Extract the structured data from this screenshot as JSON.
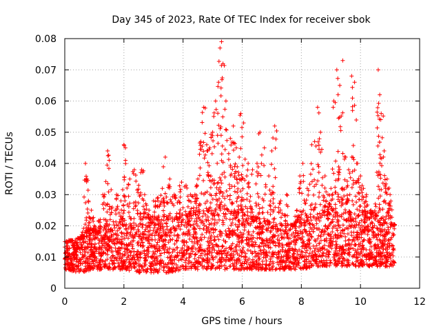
{
  "chart_data": {
    "type": "scatter",
    "title": "Day 345 of 2023, Rate Of TEC Index for receiver sbok",
    "xlabel": "GPS time / hours",
    "ylabel": "ROTI / TECUs",
    "xlim": [
      0,
      12
    ],
    "ylim": [
      0,
      0.08
    ],
    "x_ticks": [
      "0",
      "2",
      "4",
      "6",
      "8",
      "10",
      "12"
    ],
    "y_ticks": [
      "0",
      "0.01",
      "0.02",
      "0.03",
      "0.04",
      "0.05",
      "0.06",
      "0.07",
      "0.08"
    ],
    "grid": true,
    "legend": "none",
    "marker": "+",
    "color": "#ff0000",
    "series": [
      {
        "x": [
          0.05,
          0.2,
          0.35,
          0.5,
          0.6,
          0.7,
          0.75,
          0.8,
          0.9,
          1.0,
          1.1,
          1.2,
          1.35,
          1.45,
          1.5,
          1.6,
          1.75,
          1.9,
          2.0,
          2.05,
          2.2,
          2.35,
          2.5,
          2.6,
          2.7,
          2.85,
          3.0,
          3.15,
          3.3,
          3.4,
          3.55,
          3.7,
          3.85,
          3.95,
          4.1,
          4.25,
          4.4,
          4.5,
          4.6,
          4.7,
          4.8,
          4.9,
          5.0,
          5.1,
          5.2,
          5.25,
          5.3,
          5.35,
          5.45,
          5.6,
          5.7,
          5.8,
          5.9,
          5.95,
          6.05,
          6.2,
          6.35,
          6.5,
          6.6,
          6.75,
          6.9,
          7.0,
          7.1,
          7.3,
          7.5,
          7.7,
          7.85,
          7.95,
          8.05,
          8.2,
          8.35,
          8.45,
          8.55,
          8.65,
          8.8,
          8.9,
          9.0,
          9.1,
          9.2,
          9.3,
          9.4,
          9.5,
          9.6,
          9.7,
          9.8,
          9.9,
          10.0,
          10.1,
          10.2,
          10.35,
          10.5,
          10.6,
          10.65,
          10.7,
          10.8,
          10.9,
          11.0,
          11.1
        ],
        "y": [
          0.012,
          0.015,
          0.01,
          0.016,
          0.018,
          0.04,
          0.035,
          0.028,
          0.025,
          0.02,
          0.018,
          0.022,
          0.03,
          0.044,
          0.041,
          0.026,
          0.03,
          0.028,
          0.046,
          0.045,
          0.035,
          0.038,
          0.033,
          0.038,
          0.03,
          0.025,
          0.028,
          0.029,
          0.032,
          0.042,
          0.035,
          0.03,
          0.028,
          0.034,
          0.033,
          0.03,
          0.03,
          0.035,
          0.047,
          0.058,
          0.046,
          0.045,
          0.05,
          0.06,
          0.066,
          0.077,
          0.079,
          0.072,
          0.06,
          0.048,
          0.052,
          0.045,
          0.042,
          0.056,
          0.053,
          0.04,
          0.038,
          0.04,
          0.05,
          0.045,
          0.036,
          0.044,
          0.052,
          0.028,
          0.03,
          0.02,
          0.025,
          0.036,
          0.04,
          0.032,
          0.046,
          0.047,
          0.058,
          0.05,
          0.036,
          0.03,
          0.032,
          0.06,
          0.07,
          0.065,
          0.073,
          0.042,
          0.038,
          0.068,
          0.066,
          0.04,
          0.036,
          0.032,
          0.03,
          0.025,
          0.027,
          0.07,
          0.062,
          0.056,
          0.044,
          0.035,
          0.03,
          0.02
        ],
        "bulk_envelope": {
          "x": [
            0,
            0.5,
            1.0,
            1.5,
            2.0,
            2.5,
            3.0,
            3.5,
            4.0,
            4.5,
            5.0,
            5.5,
            6.0,
            6.5,
            7.0,
            7.5,
            8.0,
            8.5,
            9.0,
            9.5,
            10.0,
            10.5,
            11.0,
            11.15
          ],
          "lower": [
            0.006,
            0.005,
            0.006,
            0.006,
            0.006,
            0.005,
            0.005,
            0.005,
            0.006,
            0.006,
            0.006,
            0.006,
            0.006,
            0.006,
            0.006,
            0.006,
            0.006,
            0.007,
            0.007,
            0.007,
            0.007,
            0.007,
            0.007,
            0.007
          ],
          "upper": [
            0.015,
            0.016,
            0.018,
            0.018,
            0.02,
            0.02,
            0.021,
            0.022,
            0.022,
            0.024,
            0.025,
            0.025,
            0.024,
            0.022,
            0.02,
            0.02,
            0.021,
            0.022,
            0.024,
            0.024,
            0.023,
            0.022,
            0.022,
            0.02
          ]
        }
      }
    ]
  }
}
